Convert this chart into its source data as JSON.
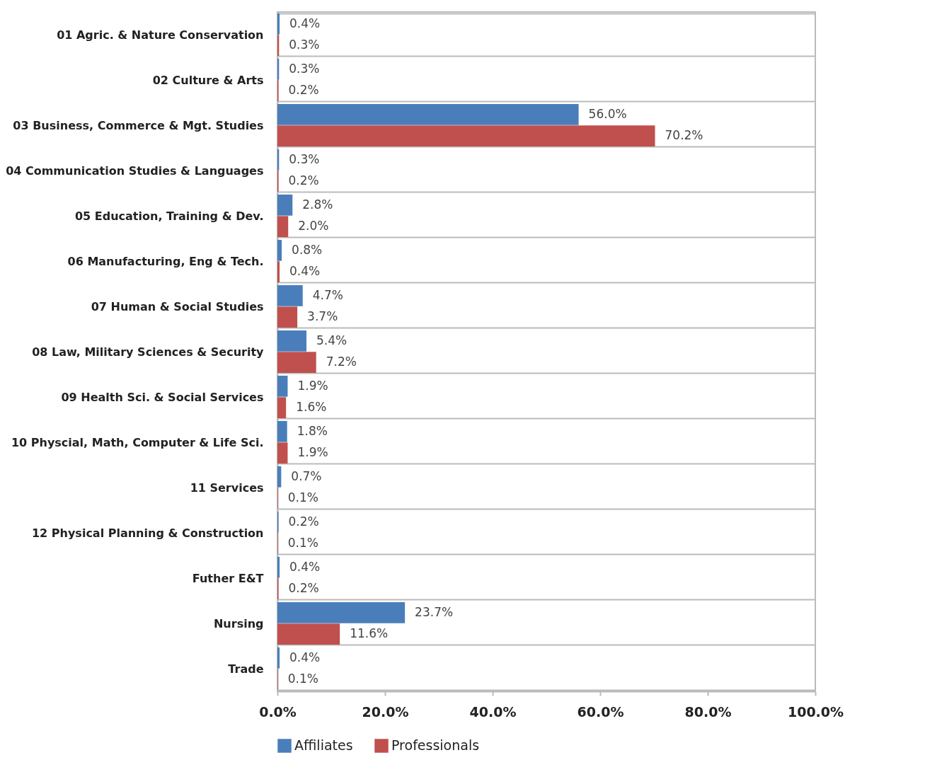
{
  "chart_data": {
    "type": "bar",
    "orientation": "horizontal",
    "categories": [
      "01 Agric. & Nature Conservation",
      "02 Culture & Arts",
      "03 Business, Commerce & Mgt. Studies",
      "04 Communication Studies & Languages",
      "05 Education, Training & Dev.",
      "06 Manufacturing, Eng & Tech.",
      "07 Human & Social Studies",
      "08 Law, Military Sciences & Security",
      "09 Health Sci. & Social Services",
      "10 Physcial, Math, Computer & Life Sci.",
      "11 Services",
      "12 Physical Planning & Construction",
      "Futher E&T",
      "Nursing",
      "Trade"
    ],
    "series": [
      {
        "name": "Affiliates",
        "color": "#4a7ebb",
        "values": [
          0.4,
          0.3,
          56.0,
          0.3,
          2.8,
          0.8,
          4.7,
          5.4,
          1.9,
          1.8,
          0.7,
          0.2,
          0.4,
          23.7,
          0.4
        ],
        "value_labels": [
          "0.4%",
          "0.3%",
          "56.0%",
          "0.3%",
          "2.8%",
          "0.8%",
          "4.7%",
          "5.4%",
          "1.9%",
          "1.8%",
          "0.7%",
          "0.2%",
          "0.4%",
          "23.7%",
          "0.4%"
        ]
      },
      {
        "name": "Professionals",
        "color": "#c0504d",
        "values": [
          0.3,
          0.2,
          70.2,
          0.2,
          2.0,
          0.4,
          3.7,
          7.2,
          1.6,
          1.9,
          0.1,
          0.1,
          0.2,
          11.6,
          0.1
        ],
        "value_labels": [
          "0.3%",
          "0.2%",
          "70.2%",
          "0.2%",
          "2.0%",
          "0.4%",
          "3.7%",
          "7.2%",
          "1.6%",
          "1.9%",
          "0.1%",
          "0.1%",
          "0.2%",
          "11.6%",
          "0.1%"
        ]
      }
    ],
    "xlim": [
      0,
      100
    ],
    "xticks": [
      {
        "value": 0,
        "label": "0.0%"
      },
      {
        "value": 20,
        "label": "20.0%"
      },
      {
        "value": 40,
        "label": "40.0%"
      },
      {
        "value": 60,
        "label": "60.0%"
      },
      {
        "value": 80,
        "label": "80.0%"
      },
      {
        "value": 100,
        "label": "100.0%"
      }
    ],
    "grid": "y",
    "legend": "bottom"
  }
}
